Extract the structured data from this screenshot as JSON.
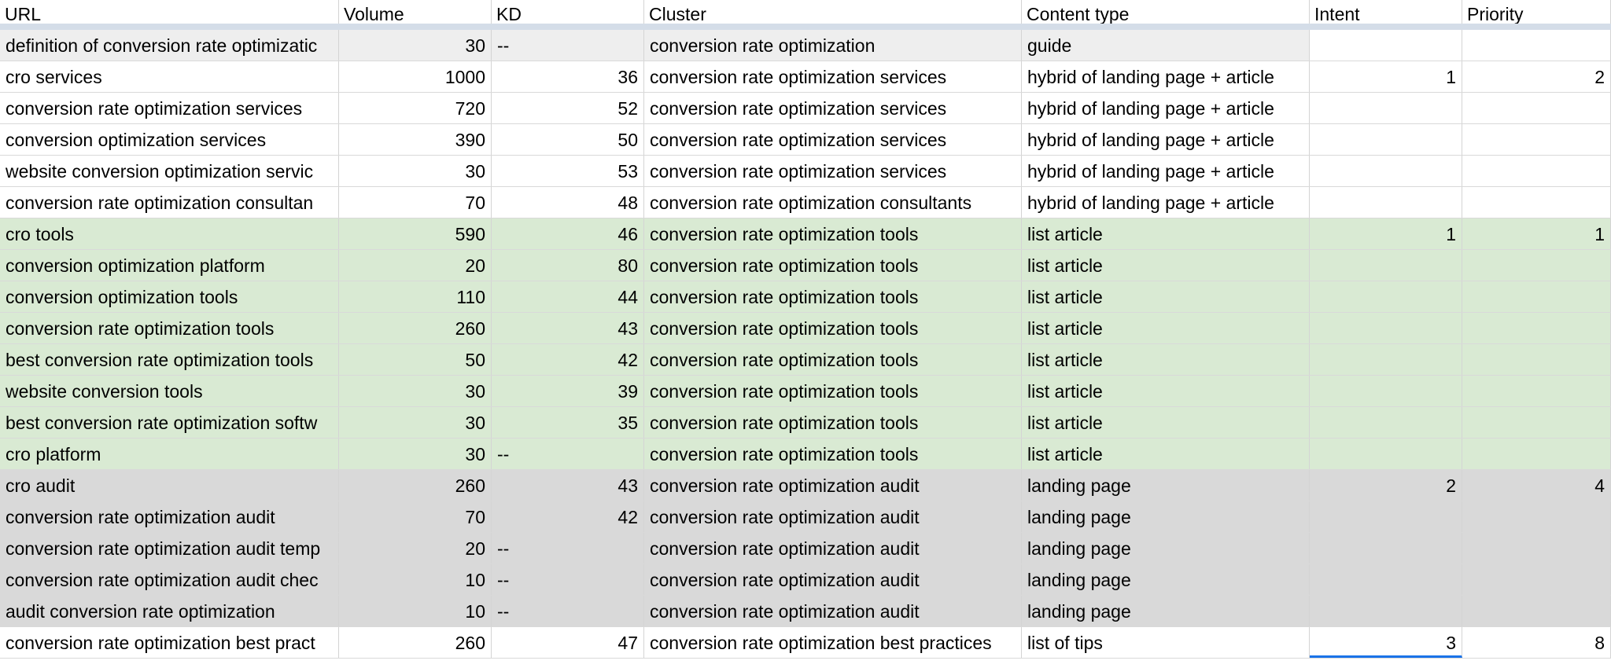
{
  "columns": [
    "URL",
    "Volume",
    "KD",
    "Cluster",
    "Content type",
    "Intent",
    "Priority"
  ],
  "colors": {
    "header_divider": "#d4dde8",
    "guide_row": "#eeeeee",
    "green_group": "#d9ead3",
    "gray_group": "#d9d9d9",
    "selection": "#1a73e8"
  },
  "rows": [
    {
      "group": "guide",
      "url": "definition of conversion rate optimizatic",
      "volume": "30",
      "kd": "--",
      "cluster": "conversion rate optimization",
      "content_type": "guide",
      "intent": "",
      "priority": ""
    },
    {
      "group": "none",
      "url": "cro services",
      "volume": "1000",
      "kd": "36",
      "cluster": "conversion rate optimization services",
      "content_type": "hybrid of landing page + article",
      "intent": "1",
      "priority": "2"
    },
    {
      "group": "none",
      "url": "conversion rate optimization services",
      "volume": "720",
      "kd": "52",
      "cluster": "conversion rate optimization services",
      "content_type": "hybrid of landing page + article",
      "intent": "",
      "priority": ""
    },
    {
      "group": "none",
      "url": "conversion optimization services",
      "volume": "390",
      "kd": "50",
      "cluster": "conversion rate optimization services",
      "content_type": "hybrid of landing page + article",
      "intent": "",
      "priority": ""
    },
    {
      "group": "none",
      "url": "website conversion optimization servic",
      "volume": "30",
      "kd": "53",
      "cluster": "conversion rate optimization services",
      "content_type": "hybrid of landing page + article",
      "intent": "",
      "priority": ""
    },
    {
      "group": "none",
      "url": "conversion rate optimization consultan",
      "volume": "70",
      "kd": "48",
      "cluster": "conversion rate optimization consultants",
      "content_type": "hybrid of landing page + article",
      "intent": "",
      "priority": ""
    },
    {
      "group": "green",
      "url": "cro tools",
      "volume": "590",
      "kd": "46",
      "cluster": "conversion rate optimization tools",
      "content_type": "list article",
      "intent": "1",
      "priority": "1"
    },
    {
      "group": "green",
      "url": "conversion optimization platform",
      "volume": "20",
      "kd": "80",
      "cluster": "conversion rate optimization tools",
      "content_type": "list article",
      "intent": "",
      "priority": ""
    },
    {
      "group": "green",
      "url": "conversion optimization tools",
      "volume": "110",
      "kd": "44",
      "cluster": "conversion rate optimization tools",
      "content_type": "list article",
      "intent": "",
      "priority": ""
    },
    {
      "group": "green",
      "url": "conversion rate optimization tools",
      "volume": "260",
      "kd": "43",
      "cluster": "conversion rate optimization tools",
      "content_type": "list article",
      "intent": "",
      "priority": ""
    },
    {
      "group": "green",
      "url": "best conversion rate optimization tools",
      "volume": "50",
      "kd": "42",
      "cluster": "conversion rate optimization tools",
      "content_type": "list article",
      "intent": "",
      "priority": ""
    },
    {
      "group": "green",
      "url": "website conversion tools",
      "volume": "30",
      "kd": "39",
      "cluster": "conversion rate optimization tools",
      "content_type": "list article",
      "intent": "",
      "priority": ""
    },
    {
      "group": "green",
      "url": "best conversion rate optimization softw",
      "volume": "30",
      "kd": "35",
      "cluster": "conversion rate optimization tools",
      "content_type": "list article",
      "intent": "",
      "priority": ""
    },
    {
      "group": "green",
      "url": "cro platform",
      "volume": "30",
      "kd": "--",
      "cluster": "conversion rate optimization tools",
      "content_type": "list article",
      "intent": "",
      "priority": ""
    },
    {
      "group": "gray",
      "url": "cro audit",
      "volume": "260",
      "kd": "43",
      "cluster": "conversion rate optimization audit",
      "content_type": "landing page",
      "intent": "2",
      "priority": "4"
    },
    {
      "group": "gray",
      "url": "conversion rate optimization audit",
      "volume": "70",
      "kd": "42",
      "cluster": "conversion rate optimization audit",
      "content_type": "landing page",
      "intent": "",
      "priority": ""
    },
    {
      "group": "gray",
      "url": "conversion rate optimization audit temp",
      "volume": "20",
      "kd": "--",
      "cluster": "conversion rate optimization audit",
      "content_type": "landing page",
      "intent": "",
      "priority": ""
    },
    {
      "group": "gray",
      "url": "conversion rate optimization audit chec",
      "volume": "10",
      "kd": "--",
      "cluster": "conversion rate optimization audit",
      "content_type": "landing page",
      "intent": "",
      "priority": ""
    },
    {
      "group": "gray",
      "url": "audit conversion rate optimization",
      "volume": "10",
      "kd": "--",
      "cluster": "conversion rate optimization audit",
      "content_type": "landing page",
      "intent": "",
      "priority": ""
    },
    {
      "group": "none",
      "url": "conversion rate optimization best pract",
      "volume": "260",
      "kd": "47",
      "cluster": "conversion rate optimization best practices",
      "content_type": "list of tips",
      "intent": "3",
      "priority": "8"
    }
  ]
}
